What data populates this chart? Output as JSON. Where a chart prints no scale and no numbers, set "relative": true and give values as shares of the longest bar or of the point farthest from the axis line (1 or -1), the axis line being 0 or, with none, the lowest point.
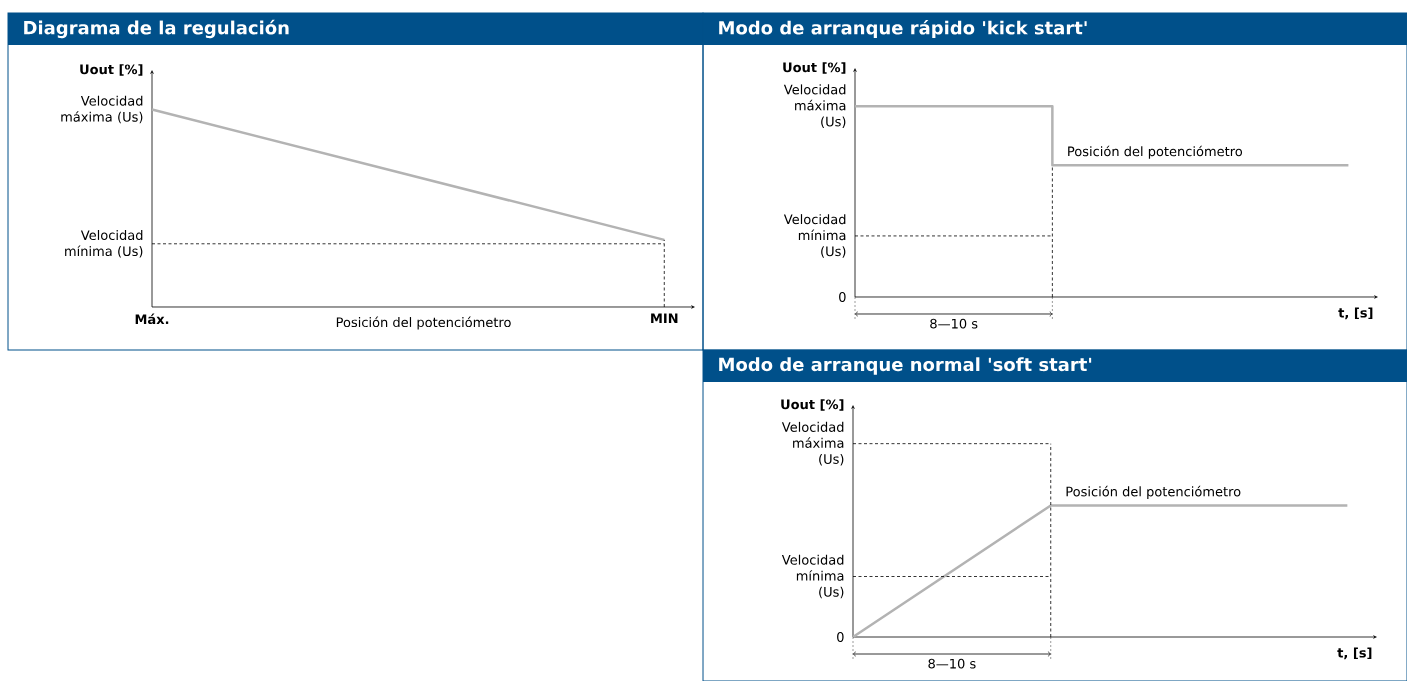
{
  "chart_data": [
    {
      "type": "line",
      "title": "Diagrama de la regulación",
      "xlabel": "Posición del potenciómetro",
      "ylabel": "Uout [%]",
      "relative": true,
      "marker": "none",
      "categories": [
        "Máx.",
        "MIN"
      ],
      "series": [
        {
          "color": "#b3b3b3",
          "values": [
            1,
            0.34
          ]
        }
      ],
      "ref_lines": [
        {
          "axis": "y",
          "value": 0.32,
          "label": "Velocidad mínima (Us)",
          "color": "#000000",
          "line_style": "dashed"
        },
        {
          "axis": "x",
          "value": "MIN",
          "color": "#000000",
          "line_style": "dashed"
        }
      ],
      "annotations": [
        "Velocidad máxima (Us)"
      ]
    },
    {
      "type": "step",
      "title": "Modo de arranque rápido 'kick start'",
      "xlabel": "t, [s]",
      "ylabel": "Uout [%]",
      "relative": true,
      "marker": "none",
      "categories": [
        null,
        null,
        null,
        null,
        null,
        null
      ],
      "series": [
        {
          "color": "#b3b3b3",
          "values": [
            1,
            1,
            0.69,
            0.69,
            0.69,
            0.69
          ]
        }
      ],
      "ref_lines": [
        {
          "axis": "y",
          "value": 0.32,
          "label": "Velocidad mínima (Us)",
          "color": "#000000",
          "line_style": "dashed"
        }
      ],
      "annotations": [
        "Velocidad máxima (Us)",
        "0",
        "Posición del potenciómetro",
        "8—10 s"
      ]
    },
    {
      "type": "line",
      "title": "Modo de arranque normal 'soft start'",
      "xlabel": "t, [s]",
      "ylabel": "Uout [%]",
      "relative": true,
      "marker": "none",
      "categories": [
        null,
        null,
        null,
        null,
        null,
        null
      ],
      "series": [
        {
          "color": "#b3b3b3",
          "values": [
            0,
            0.5,
            1,
            1,
            1,
            1
          ]
        }
      ],
      "ref_lines": [
        {
          "axis": "y",
          "value": 1.47,
          "label": "Velocidad máxima (Us)",
          "color": "#000000",
          "line_style": "dashed"
        },
        {
          "axis": "y",
          "value": 0.46,
          "label": "Velocidad mínima (Us)",
          "color": "#000000",
          "line_style": "dashed"
        }
      ],
      "annotations": [
        "0",
        "Posición del potenciómetro",
        "8—10 s"
      ]
    }
  ]
}
